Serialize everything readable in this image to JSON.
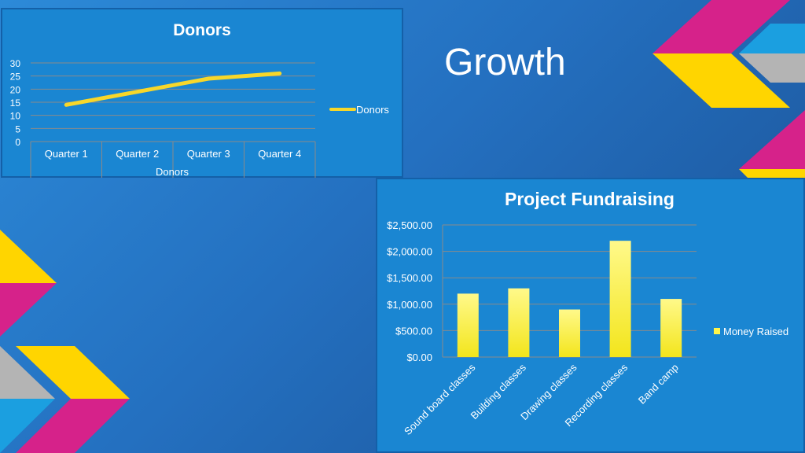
{
  "slide": {
    "title": "Growth"
  },
  "colors": {
    "background": "#2470c0",
    "panel": "#1a86d2",
    "line": "#f7d72a",
    "bar": "#fff44a",
    "magenta": "#d6228a",
    "yellow": "#ffd500",
    "gray": "#b4b4b4",
    "teal": "#4fb8a8"
  },
  "chart_data": [
    {
      "type": "line",
      "title": "Donors",
      "xlabel": "Donors",
      "ylabel": "",
      "categories": [
        "Quarter 1",
        "Quarter 2",
        "Quarter 3",
        "Quarter 4"
      ],
      "series": [
        {
          "name": "Donors",
          "values": [
            14,
            19,
            24,
            26
          ]
        }
      ],
      "ylim": [
        0,
        30
      ],
      "yticks": [
        "0",
        "5",
        "10",
        "15",
        "20",
        "25",
        "30"
      ],
      "grid": true,
      "legend": "right"
    },
    {
      "type": "bar",
      "title": "Project Fundraising",
      "xlabel": "",
      "ylabel": "",
      "categories": [
        "Sound board classes",
        "Building classes",
        "Drawing classes",
        "Recording classes",
        "Band camp"
      ],
      "series": [
        {
          "name": "Money Raised",
          "values": [
            1200,
            1300,
            900,
            2200,
            1100
          ]
        }
      ],
      "ylim": [
        0,
        2500
      ],
      "yticks": [
        "$0.00",
        "$500.00",
        "$1,000.00",
        "$1,500.00",
        "$2,000.00",
        "$2,500.00"
      ],
      "grid": true,
      "legend": "right"
    }
  ]
}
